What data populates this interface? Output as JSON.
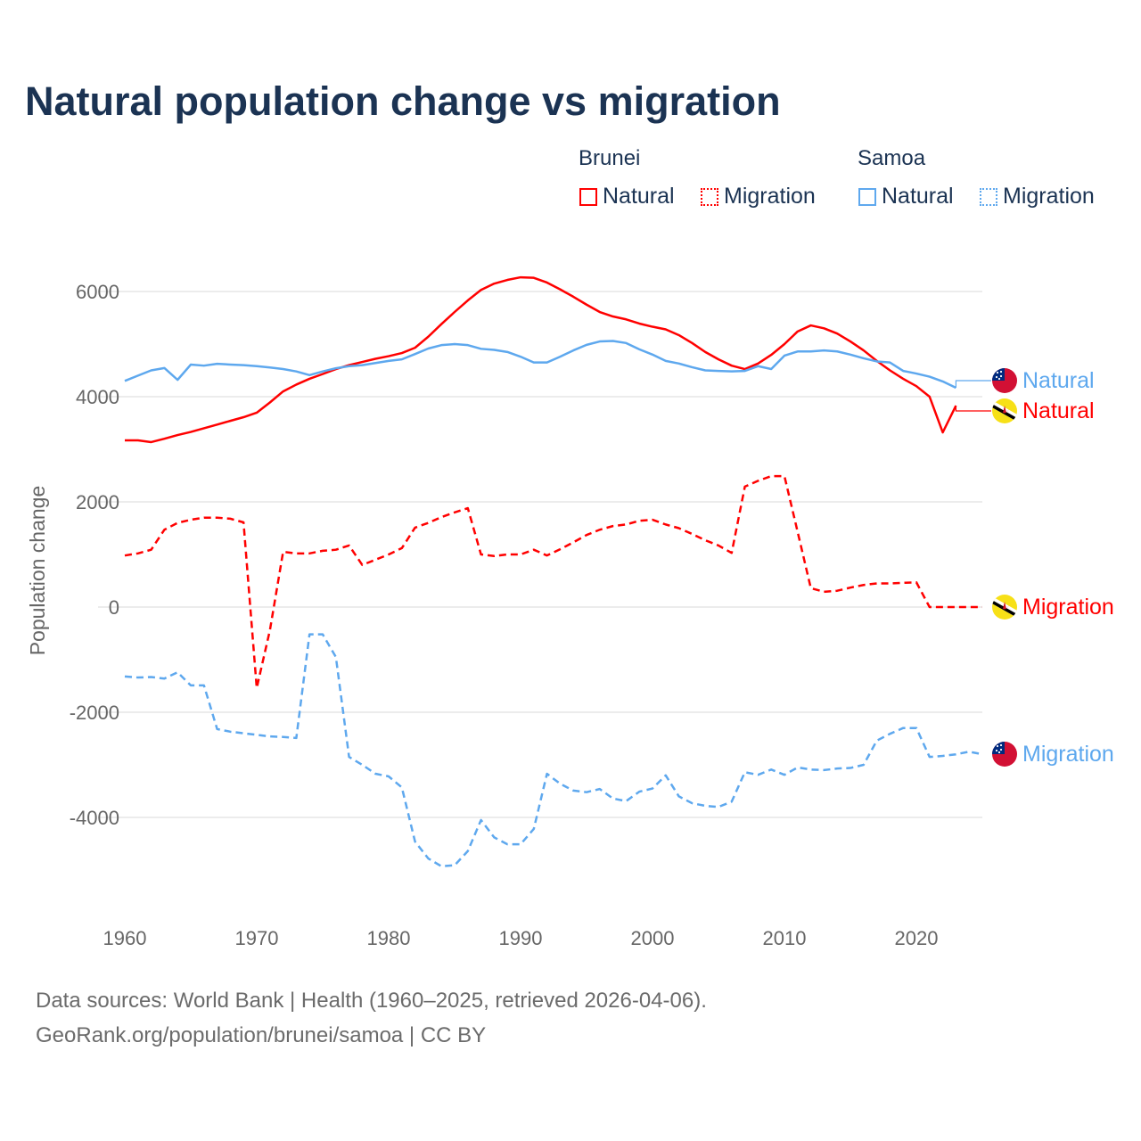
{
  "title": "Natural population change vs migration",
  "legend": {
    "groups": [
      {
        "label": "Brunei",
        "color": "#ff0000",
        "items": [
          "Natural",
          "Migration"
        ]
      },
      {
        "label": "Samoa",
        "color": "#5ea8ee",
        "items": [
          "Natural",
          "Migration"
        ]
      }
    ]
  },
  "footer": {
    "line1": "Data sources: World Bank | Health (1960–2025, retrieved 2026-04-06).",
    "line2": "GeoRank.org/population/brunei/samoa | CC BY"
  },
  "chart_data": {
    "type": "line",
    "title": "Natural population change vs migration",
    "xlabel": "",
    "ylabel": "Population change",
    "xlim": [
      1960,
      2025
    ],
    "ylim": [
      -5500,
      6500
    ],
    "x_ticks": [
      "1960",
      "1970",
      "1980",
      "1990",
      "2000",
      "2010",
      "2020"
    ],
    "y_ticks": [
      "6000",
      "4000",
      "2000",
      "0",
      "-2000",
      "-4000"
    ],
    "grid": true,
    "legend_position": "top-right",
    "series": [
      {
        "name": "Brunei Natural",
        "end_label": "Natural",
        "country": "Brunei",
        "color": "#ff0000",
        "dash": false,
        "start_year": 1960,
        "values": [
          3170,
          3170,
          3136,
          3200,
          3270,
          3330,
          3400,
          3470,
          3540,
          3610,
          3695,
          3890,
          4100,
          4230,
          4340,
          4430,
          4525,
          4600,
          4660,
          4720,
          4770,
          4830,
          4930,
          5140,
          5380,
          5610,
          5830,
          6030,
          6150,
          6220,
          6270,
          6260,
          6170,
          6040,
          5900,
          5750,
          5610,
          5525,
          5470,
          5390,
          5330,
          5280,
          5170,
          5020,
          4850,
          4710,
          4590,
          4525,
          4630,
          4795,
          5000,
          5240,
          5355,
          5300,
          5200,
          5050,
          4880,
          4680,
          4500,
          4340,
          4200,
          4000,
          3320,
          3830
        ]
      },
      {
        "name": "Brunei Migration",
        "end_label": "Migration",
        "country": "Brunei",
        "color": "#ff0000",
        "dash": true,
        "start_year": 1960,
        "values": [
          980,
          1020,
          1090,
          1470,
          1600,
          1660,
          1700,
          1700,
          1680,
          1610,
          -1540,
          -440,
          1050,
          1020,
          1020,
          1070,
          1090,
          1170,
          800,
          900,
          1000,
          1120,
          1510,
          1600,
          1710,
          1800,
          1880,
          1000,
          970,
          1000,
          1000,
          1090,
          980,
          1100,
          1230,
          1370,
          1470,
          1540,
          1570,
          1640,
          1660,
          1570,
          1500,
          1390,
          1270,
          1170,
          1030,
          2290,
          2400,
          2490,
          2490,
          1430,
          360,
          290,
          310,
          370,
          420,
          450,
          450,
          460,
          470,
          0,
          0,
          0,
          0,
          0
        ]
      },
      {
        "name": "Samoa Natural",
        "end_label": "Natural",
        "country": "Samoa",
        "color": "#5ea8ee",
        "dash": false,
        "start_year": 1960,
        "values": [
          4300,
          4400,
          4500,
          4545,
          4320,
          4610,
          4590,
          4625,
          4610,
          4600,
          4580,
          4555,
          4525,
          4480,
          4410,
          4480,
          4540,
          4580,
          4600,
          4640,
          4680,
          4710,
          4810,
          4915,
          4980,
          5000,
          4980,
          4910,
          4890,
          4850,
          4760,
          4650,
          4650,
          4760,
          4880,
          4985,
          5050,
          5060,
          5020,
          4900,
          4800,
          4680,
          4630,
          4560,
          4500,
          4490,
          4480,
          4490,
          4580,
          4525,
          4780,
          4860,
          4860,
          4880,
          4860,
          4800,
          4730,
          4670,
          4650,
          4490,
          4440,
          4380,
          4290,
          4170
        ]
      },
      {
        "name": "Samoa Migration",
        "end_label": "Migration",
        "country": "Samoa",
        "color": "#5ea8ee",
        "dash": true,
        "start_year": 1960,
        "values": [
          -1320,
          -1340,
          -1330,
          -1360,
          -1240,
          -1490,
          -1490,
          -2320,
          -2370,
          -2400,
          -2430,
          -2460,
          -2470,
          -2490,
          -520,
          -520,
          -950,
          -2850,
          -3000,
          -3170,
          -3220,
          -3430,
          -4460,
          -4780,
          -4930,
          -4910,
          -4640,
          -4050,
          -4380,
          -4510,
          -4510,
          -4220,
          -3170,
          -3360,
          -3490,
          -3520,
          -3460,
          -3640,
          -3690,
          -3510,
          -3450,
          -3200,
          -3600,
          -3730,
          -3780,
          -3800,
          -3700,
          -3140,
          -3190,
          -3090,
          -3190,
          -3050,
          -3090,
          -3100,
          -3070,
          -3060,
          -3000,
          -2540,
          -2410,
          -2300,
          -2300,
          -2850,
          -2830,
          -2800,
          -2750,
          -2800
        ]
      }
    ]
  }
}
